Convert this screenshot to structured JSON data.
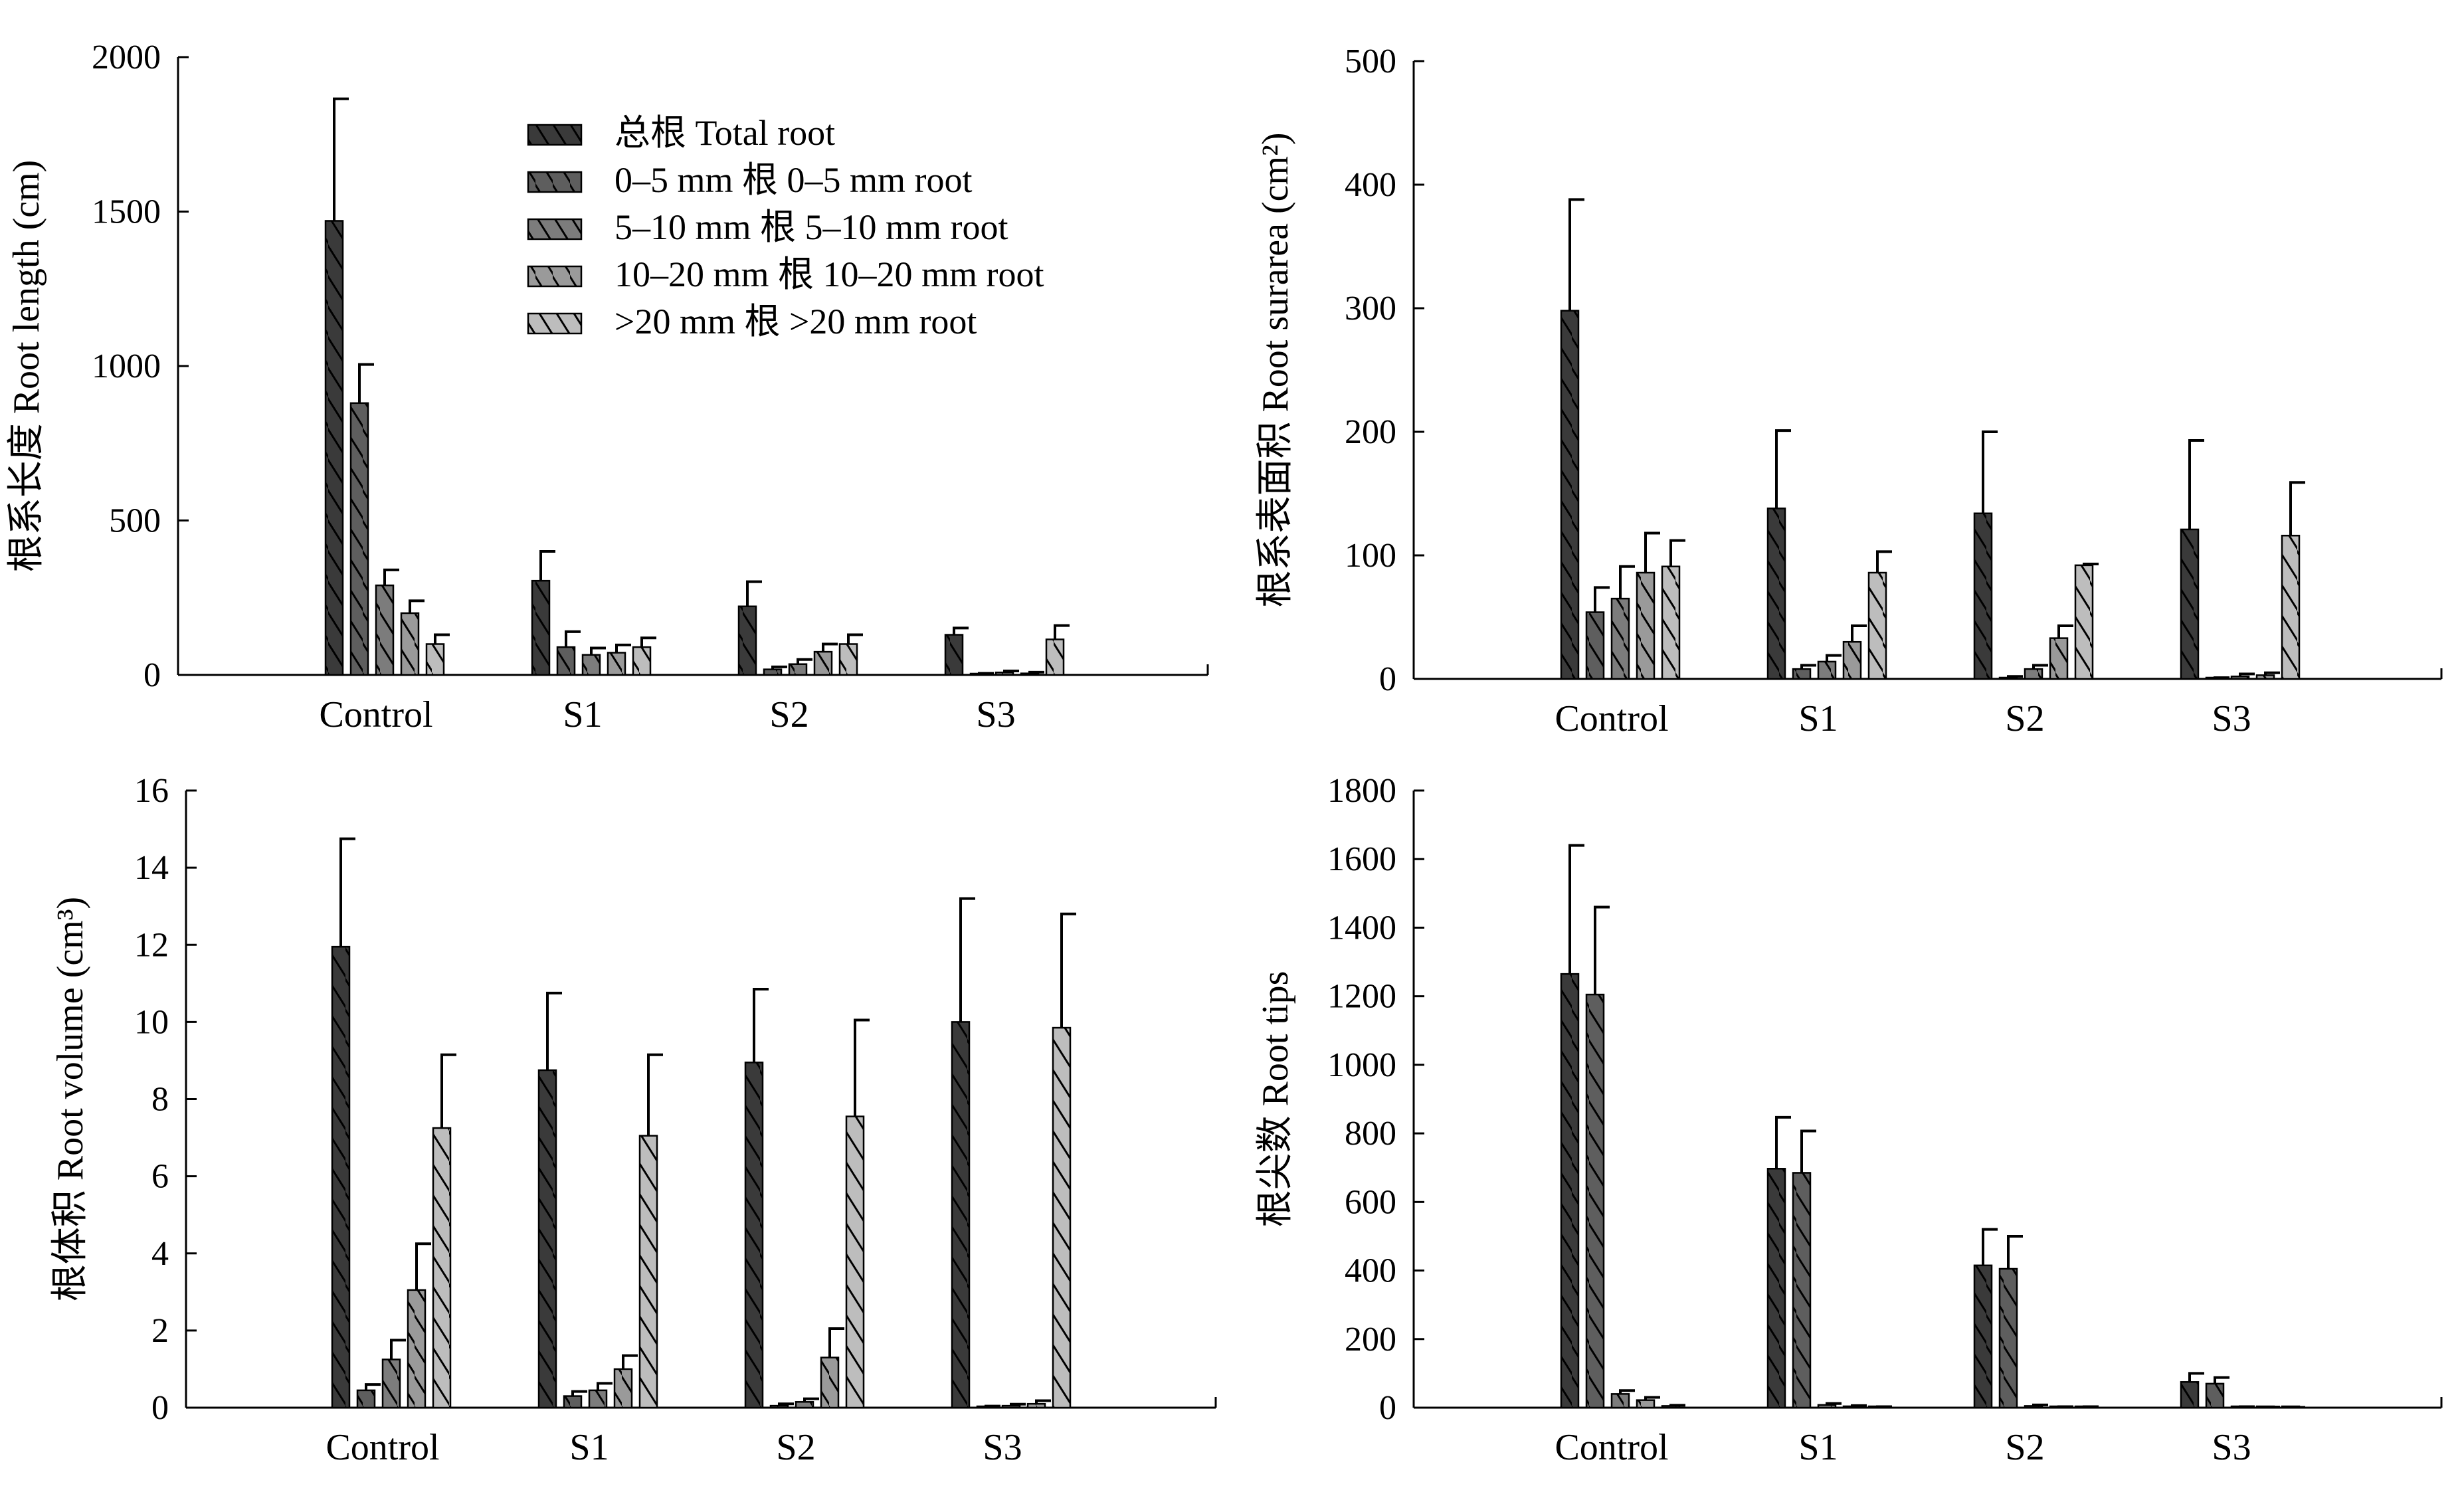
{
  "series_style": [
    {
      "color": "#3a3a3a"
    },
    {
      "color": "#5e5e5e"
    },
    {
      "color": "#7c7c7c"
    },
    {
      "color": "#9a9a9a"
    },
    {
      "color": "#bdbdbd"
    }
  ],
  "legend": {
    "items": [
      "总根 Total root",
      "0–5 mm 根 0–5 mm root",
      "5–10 mm 根 5–10 mm root",
      "10–20 mm 根 10–20 mm root",
      ">20 mm 根 >20 mm root"
    ]
  },
  "chart_data": [
    {
      "type": "bar",
      "ylabel": "根系长度 Root length (cm)",
      "ylim": [
        0,
        2000
      ],
      "yticks": [
        0,
        500,
        1000,
        1500,
        2000
      ],
      "categories": [
        "Control",
        "S1",
        "S2",
        "S3"
      ],
      "legend_position": "top-center",
      "series": [
        {
          "name": "总根 Total root",
          "values": [
            1470,
            305,
            222,
            130
          ],
          "errors": [
            395,
            95,
            80,
            22
          ]
        },
        {
          "name": "0–5 mm 根 0–5 mm root",
          "values": [
            880,
            90,
            18,
            3
          ],
          "errors": [
            125,
            50,
            8,
            2
          ]
        },
        {
          "name": "5–10 mm 根 5–10 mm root",
          "values": [
            290,
            65,
            35,
            8
          ],
          "errors": [
            50,
            22,
            15,
            5
          ]
        },
        {
          "name": "10–20 mm 根 10–20 mm root",
          "values": [
            200,
            72,
            75,
            5
          ],
          "errors": [
            40,
            25,
            25,
            4
          ]
        },
        {
          "name": ">20 mm 根 >20 mm root",
          "values": [
            100,
            90,
            100,
            115
          ],
          "errors": [
            30,
            30,
            30,
            45
          ]
        }
      ]
    },
    {
      "type": "bar",
      "ylabel": "根系表面积 Root surarea (cm²)",
      "ylim": [
        0,
        500
      ],
      "yticks": [
        0,
        100,
        200,
        300,
        400,
        500
      ],
      "categories": [
        "Control",
        "S1",
        "S2",
        "S3"
      ],
      "series": [
        {
          "name": "总根 Total root",
          "values": [
            298,
            138,
            134,
            121
          ],
          "errors": [
            90,
            63,
            66,
            72
          ]
        },
        {
          "name": "0–5 mm 根 0–5 mm root",
          "values": [
            54,
            8,
            1,
            0.5
          ],
          "errors": [
            20,
            3,
            1,
            0.5
          ]
        },
        {
          "name": "5–10 mm 根 5–10 mm root",
          "values": [
            65,
            14,
            8,
            2
          ],
          "errors": [
            26,
            5,
            3,
            2
          ]
        },
        {
          "name": "10–20 mm 根 10–20 mm root",
          "values": [
            86,
            30,
            33,
            3
          ],
          "errors": [
            32,
            13,
            10,
            2
          ]
        },
        {
          "name": ">20 mm 根 >20 mm root",
          "values": [
            91,
            86,
            92,
            116
          ],
          "errors": [
            21,
            17,
            1,
            43
          ]
        }
      ]
    },
    {
      "type": "bar",
      "ylabel": "根体积  Root volume (cm³)",
      "ylim": [
        0,
        16
      ],
      "yticks": [
        0,
        2,
        4,
        6,
        8,
        10,
        12,
        14,
        16
      ],
      "categories": [
        "Control",
        "S1",
        "S2",
        "S3"
      ],
      "series": [
        {
          "name": "总根 Total root",
          "values": [
            11.95,
            8.75,
            8.95,
            10.0
          ],
          "errors": [
            2.8,
            2.0,
            1.9,
            3.2
          ]
        },
        {
          "name": "0–5 mm 根 0–5 mm root",
          "values": [
            0.45,
            0.3,
            0.05,
            0.02
          ],
          "errors": [
            0.15,
            0.12,
            0.05,
            0.02
          ]
        },
        {
          "name": "5–10 mm 根 5–10 mm root",
          "values": [
            1.25,
            0.45,
            0.15,
            0.05
          ],
          "errors": [
            0.5,
            0.18,
            0.08,
            0.04
          ]
        },
        {
          "name": "10–20 mm 根 10–20 mm root",
          "values": [
            3.05,
            1.0,
            1.3,
            0.1
          ],
          "errors": [
            1.2,
            0.35,
            0.75,
            0.08
          ]
        },
        {
          "name": ">20 mm 根 >20 mm root",
          "values": [
            7.25,
            7.05,
            7.55,
            9.85
          ],
          "errors": [
            1.9,
            2.1,
            2.5,
            2.95
          ]
        }
      ]
    },
    {
      "type": "bar",
      "ylabel": "根尖数  Root tips",
      "ylim": [
        0,
        1800
      ],
      "yticks": [
        0,
        200,
        400,
        600,
        800,
        1000,
        1200,
        1400,
        1600,
        1800
      ],
      "categories": [
        "Control",
        "S1",
        "S2",
        "S3"
      ],
      "series": [
        {
          "name": "总根 Total root",
          "values": [
            1265,
            697,
            415,
            75
          ],
          "errors": [
            375,
            150,
            105,
            25
          ]
        },
        {
          "name": "0–5 mm 根 0–5 mm root",
          "values": [
            1205,
            685,
            405,
            70
          ],
          "errors": [
            255,
            122,
            95,
            18
          ]
        },
        {
          "name": "5–10 mm 根 5–10 mm root",
          "values": [
            40,
            8,
            5,
            2
          ],
          "errors": [
            10,
            4,
            3,
            1
          ]
        },
        {
          "name": "10–20 mm 根 10–20 mm root",
          "values": [
            22,
            4,
            2,
            1
          ],
          "errors": [
            8,
            2,
            1,
            1
          ]
        },
        {
          "name": ">20 mm 根 >20 mm root",
          "values": [
            5,
            2,
            2,
            0.5
          ],
          "errors": [
            2,
            1,
            1,
            0.5
          ]
        }
      ]
    }
  ]
}
